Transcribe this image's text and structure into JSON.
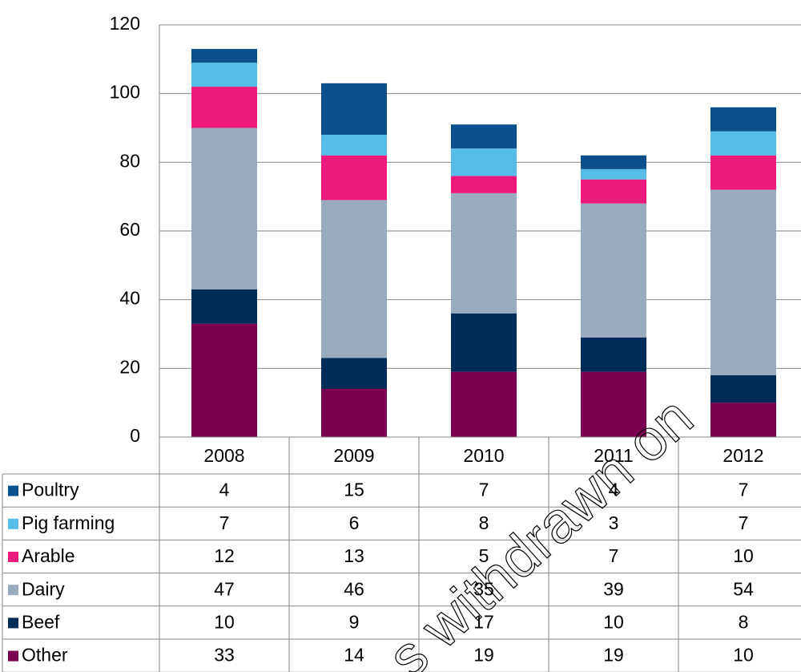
{
  "chart_data": {
    "type": "stacked_bar",
    "categories": [
      "2008",
      "2009",
      "2010",
      "2011",
      "2012"
    ],
    "series": [
      {
        "name": "Poultry",
        "color": "#0b4f8c",
        "values": [
          4,
          15,
          7,
          4,
          7
        ]
      },
      {
        "name": "Pig farming",
        "color": "#55bde8",
        "values": [
          7,
          6,
          8,
          3,
          7
        ]
      },
      {
        "name": "Arable",
        "color": "#ed1a7c",
        "values": [
          12,
          13,
          5,
          7,
          10
        ]
      },
      {
        "name": "Dairy",
        "color": "#9aabbd",
        "values": [
          47,
          46,
          35,
          39,
          54
        ]
      },
      {
        "name": "Beef",
        "color": "#002c5a",
        "values": [
          10,
          9,
          17,
          10,
          8
        ]
      },
      {
        "name": "Other",
        "color": "#7c0051",
        "values": [
          33,
          14,
          19,
          19,
          10
        ]
      }
    ],
    "ylim": [
      0,
      120
    ],
    "yticks": [
      0,
      20,
      40,
      60,
      80,
      100,
      120
    ],
    "grid": true,
    "annotations": [
      "s withdrawn on"
    ]
  }
}
